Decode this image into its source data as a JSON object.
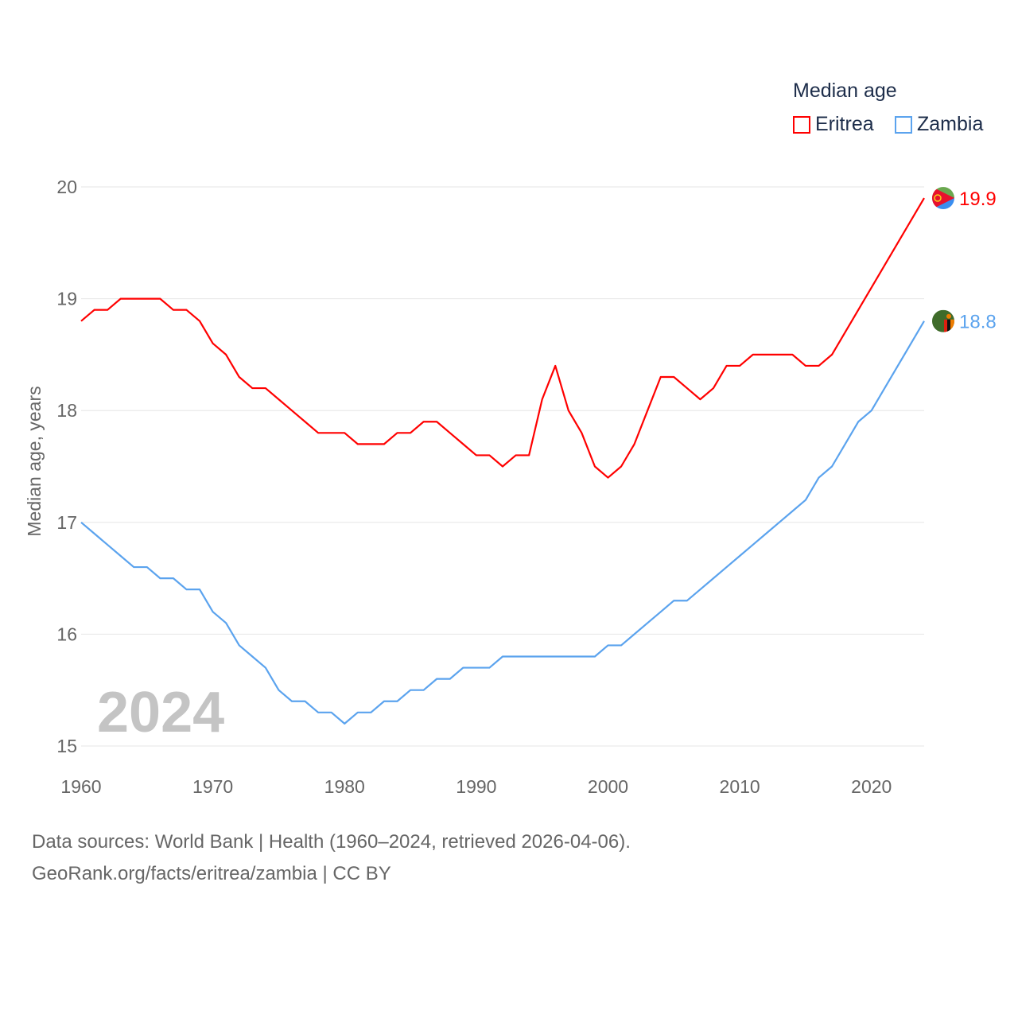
{
  "chart_data": {
    "type": "line",
    "title": "Median age",
    "ylabel": "Median age, years",
    "xlabel": "",
    "xlim": [
      1960,
      2024
    ],
    "ylim": [
      15,
      20
    ],
    "x_ticks": [
      "1960",
      "1970",
      "1980",
      "1990",
      "2000",
      "2010",
      "2020"
    ],
    "y_ticks": [
      "15",
      "16",
      "17",
      "18",
      "19",
      "20"
    ],
    "grid": true,
    "legend_position": "top-right",
    "year_label": "2024",
    "x": [
      1960,
      1961,
      1962,
      1963,
      1964,
      1965,
      1966,
      1967,
      1968,
      1969,
      1970,
      1971,
      1972,
      1973,
      1974,
      1975,
      1976,
      1977,
      1978,
      1979,
      1980,
      1981,
      1982,
      1983,
      1984,
      1985,
      1986,
      1987,
      1988,
      1989,
      1990,
      1991,
      1992,
      1993,
      1994,
      1995,
      1996,
      1997,
      1998,
      1999,
      2000,
      2001,
      2002,
      2003,
      2004,
      2005,
      2006,
      2007,
      2008,
      2009,
      2010,
      2011,
      2012,
      2013,
      2014,
      2015,
      2016,
      2017,
      2018,
      2019,
      2020,
      2021,
      2022,
      2023,
      2024
    ],
    "series": [
      {
        "name": "Eritrea",
        "color": "#ff0000",
        "end_label": "19.9",
        "values": [
          18.8,
          18.9,
          18.9,
          19.0,
          19.0,
          19.0,
          19.0,
          18.9,
          18.9,
          18.8,
          18.6,
          18.5,
          18.3,
          18.2,
          18.2,
          18.1,
          18.0,
          17.9,
          17.8,
          17.8,
          17.8,
          17.7,
          17.7,
          17.7,
          17.8,
          17.8,
          17.9,
          17.9,
          17.8,
          17.7,
          17.6,
          17.6,
          17.5,
          17.6,
          17.6,
          18.1,
          18.4,
          18.0,
          17.8,
          17.5,
          17.4,
          17.5,
          17.7,
          18.0,
          18.3,
          18.3,
          18.2,
          18.1,
          18.2,
          18.4,
          18.4,
          18.5,
          18.5,
          18.5,
          18.5,
          18.4,
          18.4,
          18.5,
          18.7,
          18.9,
          19.1,
          19.3,
          19.5,
          19.7,
          19.9
        ]
      },
      {
        "name": "Zambia",
        "color": "#5ba3ee",
        "end_label": "18.8",
        "values": [
          17.0,
          16.9,
          16.8,
          16.7,
          16.6,
          16.6,
          16.5,
          16.5,
          16.4,
          16.4,
          16.2,
          16.1,
          15.9,
          15.8,
          15.7,
          15.5,
          15.4,
          15.4,
          15.3,
          15.3,
          15.2,
          15.3,
          15.3,
          15.4,
          15.4,
          15.5,
          15.5,
          15.6,
          15.6,
          15.7,
          15.7,
          15.7,
          15.8,
          15.8,
          15.8,
          15.8,
          15.8,
          15.8,
          15.8,
          15.8,
          15.9,
          15.9,
          16.0,
          16.1,
          16.2,
          16.3,
          16.3,
          16.4,
          16.5,
          16.6,
          16.7,
          16.8,
          16.9,
          17.0,
          17.1,
          17.2,
          17.4,
          17.5,
          17.7,
          17.9,
          18.0,
          18.2,
          18.4,
          18.6,
          18.8
        ]
      }
    ]
  },
  "footer": {
    "line1": "Data sources: World Bank | Health (1960–2024, retrieved 2026-04-06).",
    "line2": "GeoRank.org/facts/eritrea/zambia | CC BY"
  }
}
